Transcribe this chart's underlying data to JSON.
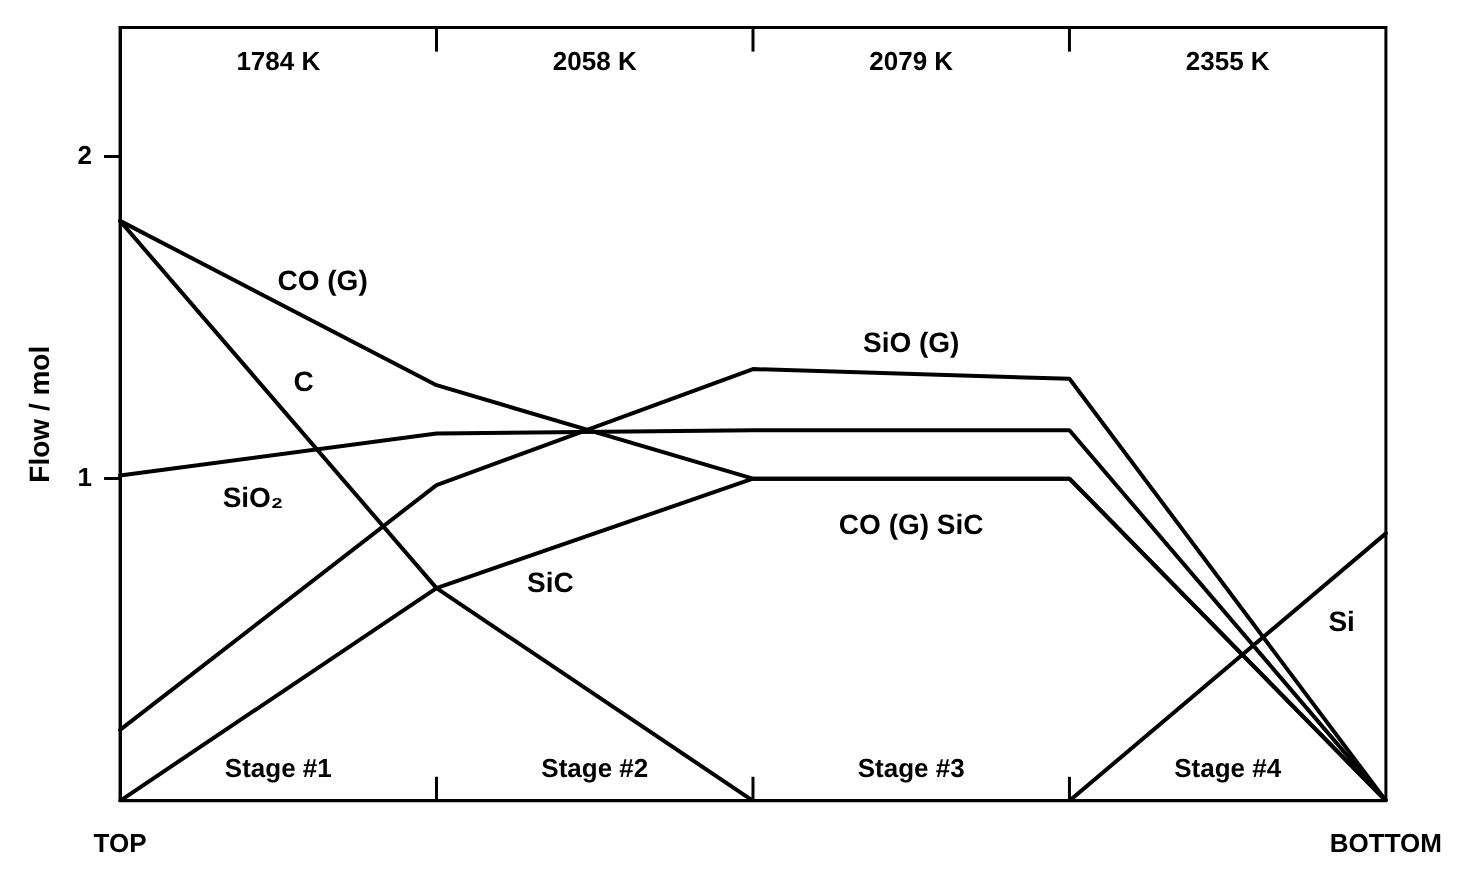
{
  "chart_data": {
    "type": "line",
    "ylabel": "Flow / mol",
    "categories": [
      "TOP",
      null,
      null,
      null,
      "BOTTOM"
    ],
    "ylim": [
      0,
      2.4
    ],
    "yticks": [
      1,
      2
    ],
    "grid": false,
    "legend": false,
    "marker": "none",
    "line_style": "solid",
    "series": [
      {
        "name": "CO (G)",
        "color": "#000000",
        "values": [
          1.8,
          1.29,
          1.0,
          1.0,
          0
        ]
      },
      {
        "name": "C",
        "color": "#000000",
        "values": [
          1.8,
          0.66,
          0,
          null,
          null
        ]
      },
      {
        "name": "SiO₂",
        "color": "#000000",
        "values": [
          1.01,
          1.14,
          1.15,
          1.15,
          0
        ]
      },
      {
        "name": "SiO (G)",
        "color": "#000000",
        "values": [
          0.22,
          0.98,
          1.34,
          1.31,
          0
        ]
      },
      {
        "name": "SiC",
        "color": "#000000",
        "values": [
          0,
          0.66,
          1.0,
          1.0,
          0
        ]
      },
      {
        "name": "Si",
        "color": "#000000",
        "values": [
          null,
          null,
          null,
          0,
          0.83
        ]
      }
    ],
    "annotations": [
      "1784 K",
      "2058 K",
      "2079 K",
      "2355 K",
      "Stage #1",
      "Stage #2",
      "Stage #3",
      "Stage #4",
      "CO (G) SiC"
    ]
  }
}
